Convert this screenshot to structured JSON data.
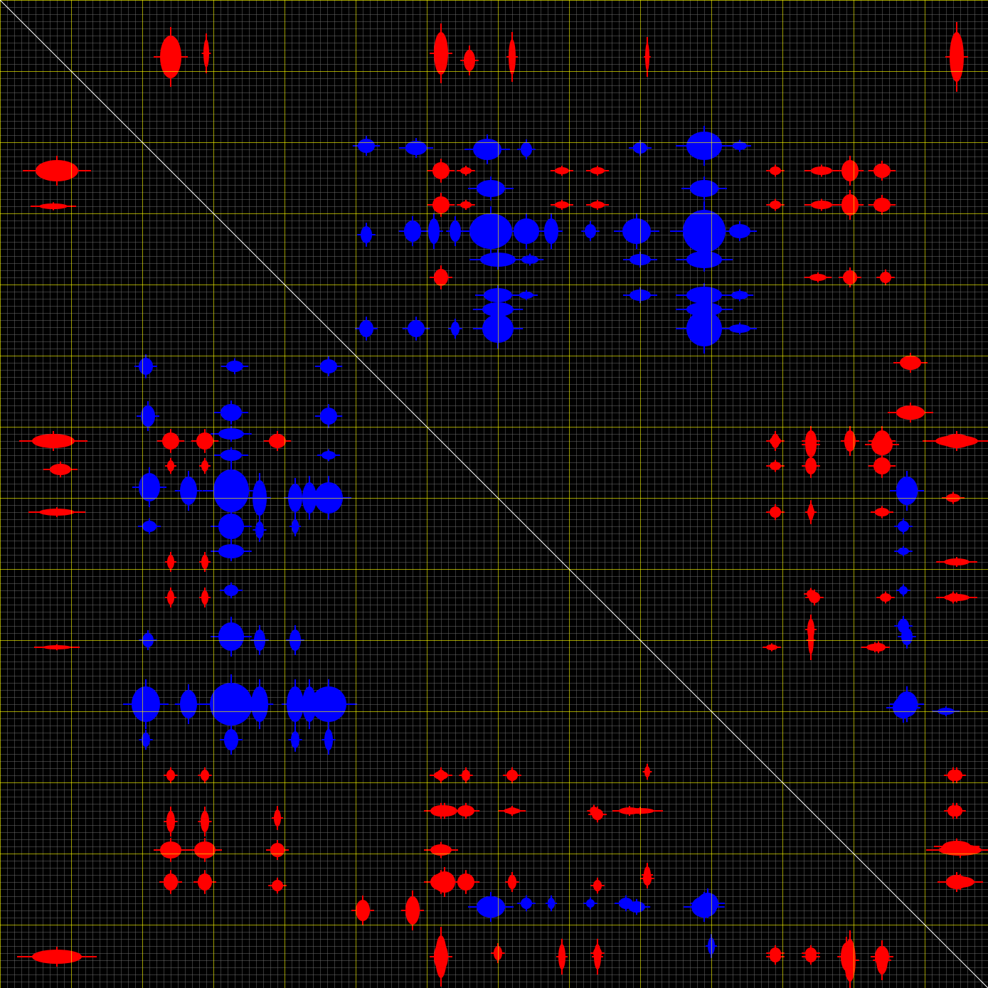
{
  "map": {
    "background_color": "#000000",
    "minor_grid_color": "#6e6e6e",
    "major_grid_color": "#ffff00",
    "diagonal_color": "#ffffff",
    "positive_color": "#ff0000",
    "negative_color": "#0000ff",
    "symmetric": true
  }
}
